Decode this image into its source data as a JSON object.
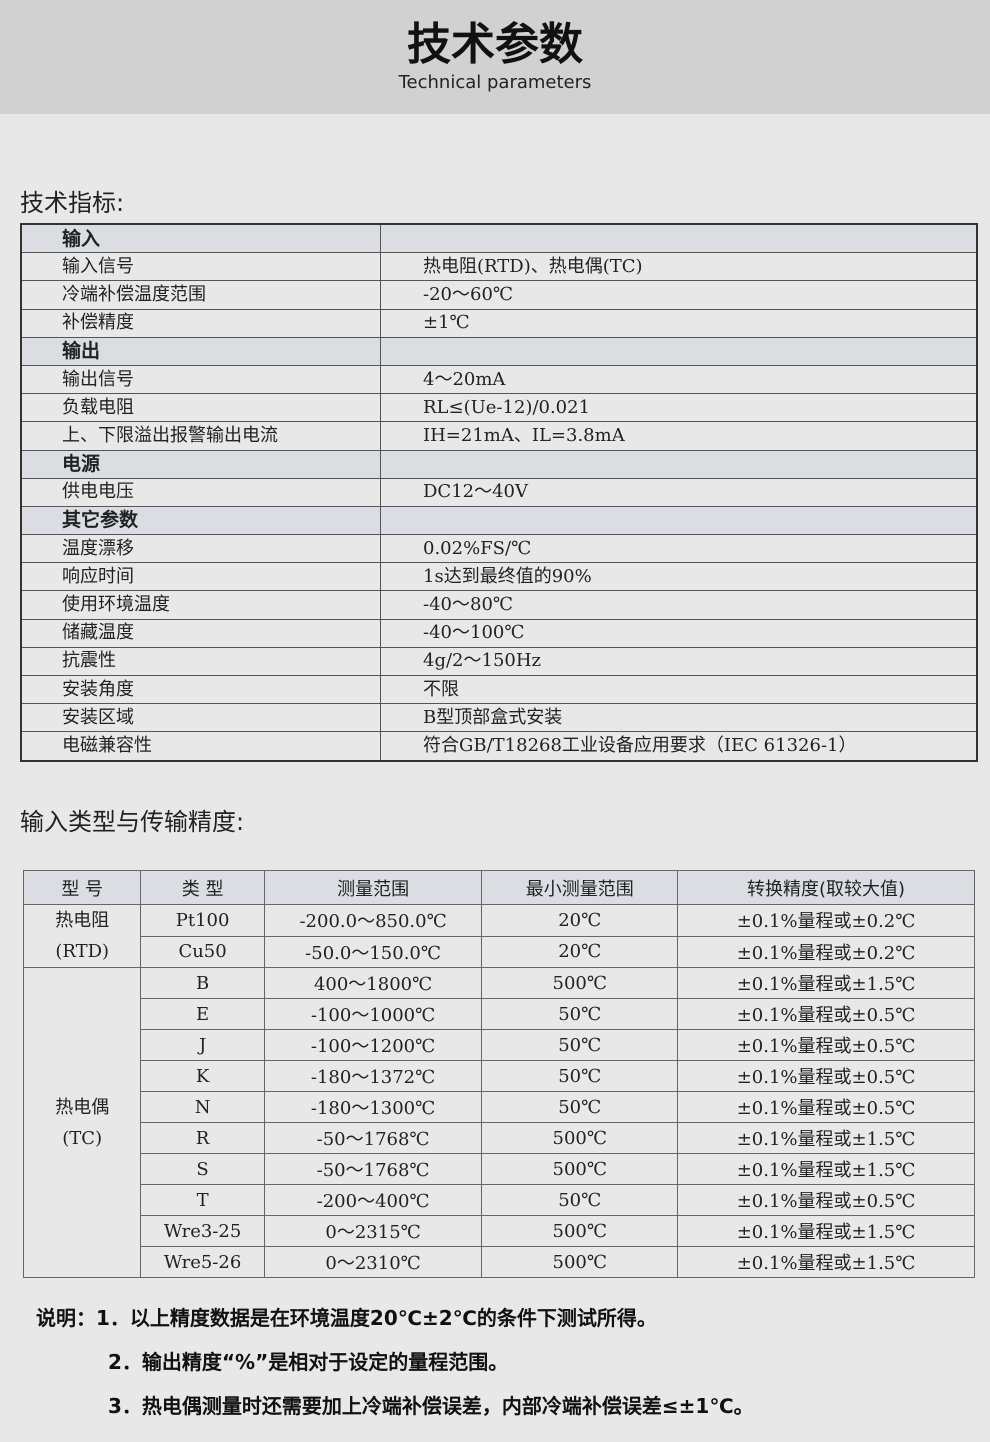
{
  "header": {
    "title": "技术参数",
    "subtitle": "Technical parameters"
  },
  "spec": {
    "title": "技术指标:",
    "rows": [
      {
        "group": true,
        "k": "输入",
        "v": ""
      },
      {
        "k": "输入信号",
        "v": "热电阻(RTD)、热电偶(TC)"
      },
      {
        "k": "冷端补偿温度范围",
        "v": "-20～60℃"
      },
      {
        "k": "补偿精度",
        "v": "±1℃"
      },
      {
        "group": true,
        "k": "输出",
        "v": ""
      },
      {
        "k": "输出信号",
        "v": "4～20mA"
      },
      {
        "k": "负载电阻",
        "v": "RL≤(Ue-12)/0.021"
      },
      {
        "k": "上、下限溢出报警输出电流",
        "v": "IH=21mA、IL=3.8mA"
      },
      {
        "group": true,
        "k": "电源",
        "v": ""
      },
      {
        "k": "供电电压",
        "v": "DC12～40V"
      },
      {
        "group": true,
        "k": "其它参数",
        "v": ""
      },
      {
        "k": "温度漂移",
        "v": "0.02%FS/℃"
      },
      {
        "k": "响应时间",
        "v": "1s达到最终值的90%"
      },
      {
        "k": "使用环境温度",
        "v": "-40～80℃"
      },
      {
        "k": "储藏温度",
        "v": "-40～100℃"
      },
      {
        "k": "抗震性",
        "v": "4g/2～150Hz"
      },
      {
        "k": "安装角度",
        "v": "不限"
      },
      {
        "k": "安装区域",
        "v": "B型顶部盒式安装"
      },
      {
        "k": "电磁兼容性",
        "v": "符合GB/T18268工业设备应用要求（IEC 61326-1）"
      }
    ]
  },
  "accuracy": {
    "title": "输入类型与传输精度:",
    "headers": [
      "型 号",
      "类 型",
      "测量范围",
      "最小测量范围",
      "转换精度(取较大值)"
    ],
    "groups": [
      {
        "name": "热电阻",
        "sub": "(RTD)",
        "rows": [
          [
            "Pt100",
            "-200.0～850.0℃",
            "20℃",
            "±0.1%量程或±0.2℃"
          ],
          [
            "Cu50",
            "-50.0～150.0℃",
            "20℃",
            "±0.1%量程或±0.2℃"
          ]
        ]
      },
      {
        "name": "热电偶",
        "sub": "(TC)",
        "rows": [
          [
            "B",
            "400～1800℃",
            "500℃",
            "±0.1%量程或±1.5℃"
          ],
          [
            "E",
            "-100～1000℃",
            "50℃",
            "±0.1%量程或±0.5℃"
          ],
          [
            "J",
            "-100～1200℃",
            "50℃",
            "±0.1%量程或±0.5℃"
          ],
          [
            "K",
            "-180～1372℃",
            "50℃",
            "±0.1%量程或±0.5℃"
          ],
          [
            "N",
            "-180～1300℃",
            "50℃",
            "±0.1%量程或±0.5℃"
          ],
          [
            "R",
            "-50～1768℃",
            "500℃",
            "±0.1%量程或±1.5℃"
          ],
          [
            "S",
            "-50～1768℃",
            "500℃",
            "±0.1%量程或±1.5℃"
          ],
          [
            "T",
            "-200～400℃",
            "50℃",
            "±0.1%量程或±0.5℃"
          ],
          [
            "Wre3-25",
            "0～2315℃",
            "500℃",
            "±0.1%量程或±1.5℃"
          ],
          [
            "Wre5-26",
            "0～2310℃",
            "500℃",
            "±0.1%量程或±1.5℃"
          ]
        ]
      }
    ]
  },
  "notes": {
    "label": "说明：",
    "items": [
      "1．以上精度数据是在环境温度20℃±2℃的条件下测试所得。",
      "2．输出精度“%”是相对于设定的量程范围。",
      "3．热电偶测量时还需要加上冷端补偿误差，内部冷端补偿误差≤±1℃。"
    ]
  }
}
